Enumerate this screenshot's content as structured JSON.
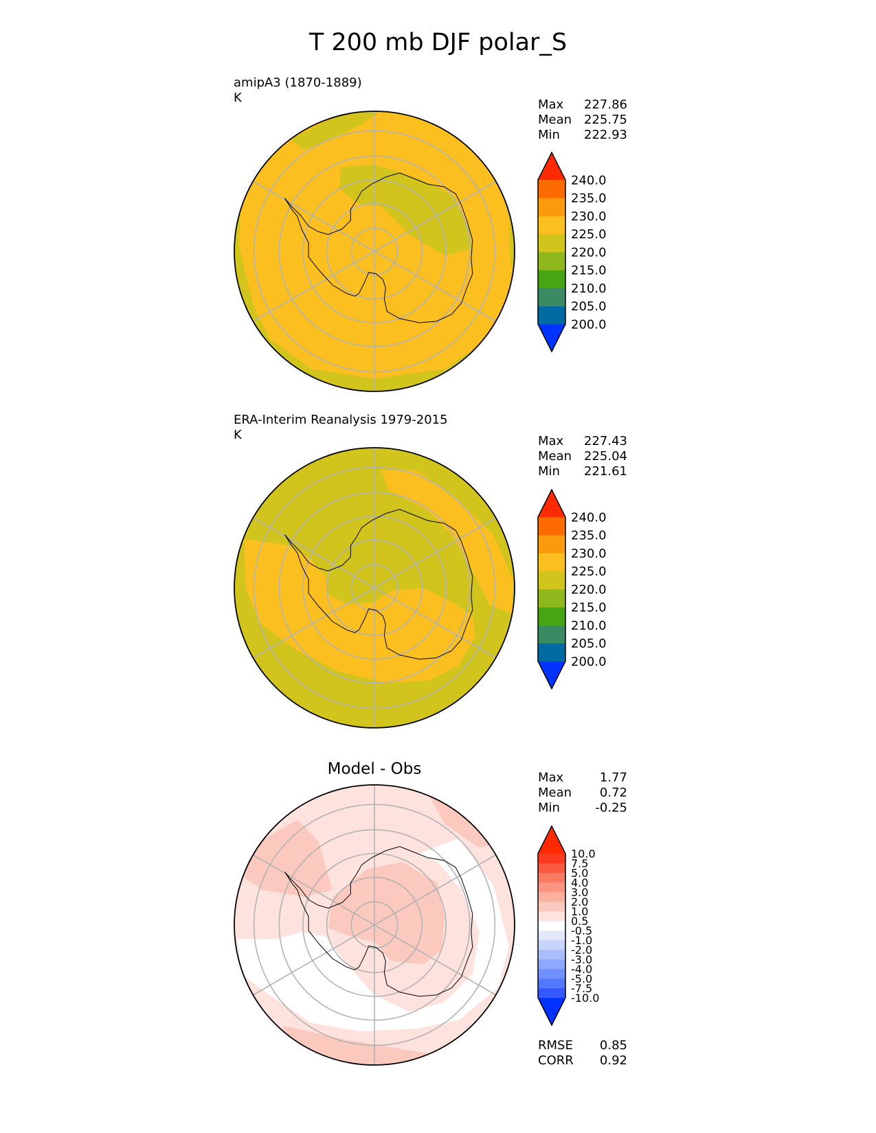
{
  "title": "T 200 mb DJF polar_S",
  "panels": [
    {
      "id": "test",
      "title_lines": [
        "amipA3 (1870-1889)",
        "K"
      ],
      "stats": [
        {
          "label": "Max",
          "value": "227.86"
        },
        {
          "label": "Mean",
          "value": "225.75"
        },
        {
          "label": "Min",
          "value": "222.93"
        }
      ]
    },
    {
      "id": "ref",
      "title_lines": [
        "ERA-Interim Reanalysis 1979-2015",
        "K"
      ],
      "stats": [
        {
          "label": "Max",
          "value": "227.43"
        },
        {
          "label": "Mean",
          "value": "225.04"
        },
        {
          "label": "Min",
          "value": "221.61"
        }
      ]
    },
    {
      "id": "diff",
      "center_title": "Model - Obs",
      "stats": [
        {
          "label": "Max",
          "value": "1.77"
        },
        {
          "label": "Mean",
          "value": "0.72"
        },
        {
          "label": "Min",
          "value": "-0.25"
        }
      ],
      "metrics": [
        {
          "label": "RMSE",
          "value": "0.85"
        },
        {
          "label": "CORR",
          "value": "0.92"
        }
      ]
    }
  ],
  "colorbars": {
    "field": {
      "levels": [
        "200.0",
        "205.0",
        "210.0",
        "215.0",
        "220.0",
        "225.0",
        "230.0",
        "235.0",
        "240.0"
      ],
      "colors": [
        "#0033ff",
        "#006aa3",
        "#3a8b63",
        "#47a514",
        "#8fb81c",
        "#d1c41c",
        "#fbbf20",
        "#fb9a0c",
        "#fb6b00",
        "#ff2a00"
      ],
      "extend": "both"
    },
    "diff": {
      "levels": [
        "-10.0",
        "-7.5",
        "-5.0",
        "-4.0",
        "-3.0",
        "-2.0",
        "-1.0",
        "-0.5",
        "0.5",
        "1.0",
        "2.0",
        "3.0",
        "4.0",
        "5.0",
        "7.5",
        "10.0"
      ],
      "colors": [
        "#0033ff",
        "#3458ff",
        "#5477ff",
        "#7090ff",
        "#8ea8ff",
        "#aabdfc",
        "#c7d4fb",
        "#e3e9fb",
        "#ffffff",
        "#fde2dd",
        "#fcc9bf",
        "#fbb0a0",
        "#fb9583",
        "#fb7a64",
        "#fc5a40",
        "#fd3a1d",
        "#ff2a00"
      ],
      "extend": "both"
    }
  },
  "chart_data": [
    {
      "type": "polar-map",
      "title": "amipA3 (1870-1889)",
      "units": "K",
      "field": "T 200 mb DJF",
      "projection": "south-polar-stereographic",
      "grid": true,
      "dominant_levels": [
        "225-230 over most of the domain",
        "220-225 over East Antarctica interior and outer ring"
      ],
      "max": 227.86,
      "mean": 225.75,
      "min": 222.93
    },
    {
      "type": "polar-map",
      "title": "ERA-Interim Reanalysis 1979-2015",
      "units": "K",
      "field": "T 200 mb DJF",
      "projection": "south-polar-stereographic",
      "grid": true,
      "dominant_levels": [
        "220-225 over Antarctica and outer ring",
        "225-230 over a broad mid-latitude band"
      ],
      "max": 227.43,
      "mean": 225.04,
      "min": 221.61
    },
    {
      "type": "polar-map",
      "title": "Model - Obs",
      "units": "K",
      "projection": "south-polar-stereographic",
      "grid": true,
      "dominant_levels": [
        "-0.5 to 0.5 over Antarctic coast and mid-latitude band",
        "0.5 to 1.0 over polar cap and outer ring",
        "1.0 to 2.0 in small patches"
      ],
      "max": 1.77,
      "mean": 0.72,
      "min": -0.25,
      "rmse": 0.85,
      "corr": 0.92
    }
  ]
}
